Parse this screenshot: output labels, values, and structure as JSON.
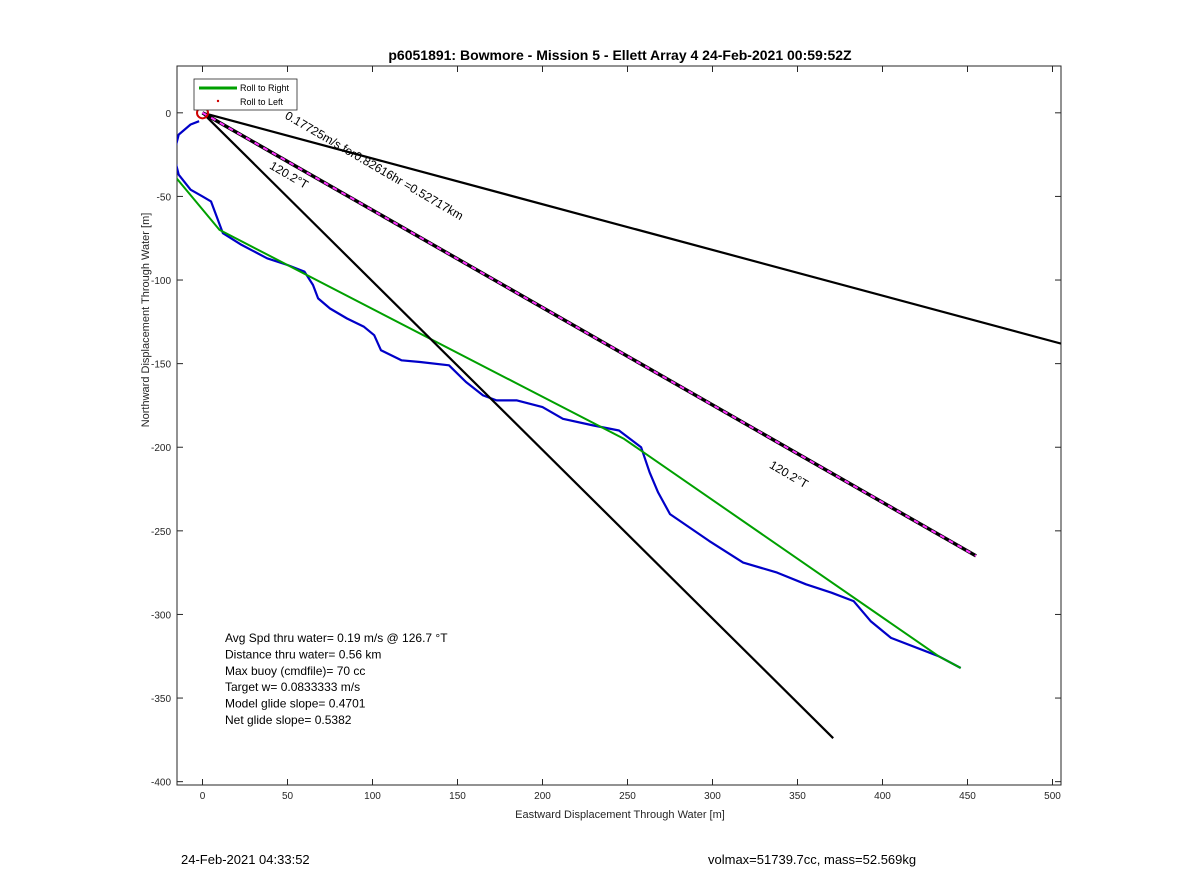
{
  "chart_data": {
    "type": "line",
    "title": "p6051891: Bowmore - Mission 5 - Ellett Array 4 24-Feb-2021 00:59:52Z",
    "xlabel": "Eastward Displacement Through Water [m]",
    "ylabel": "Northward Displacement Through Water [m]",
    "xlim": [
      -15,
      505
    ],
    "ylim": [
      -402,
      28
    ],
    "xticks": [
      0,
      50,
      100,
      150,
      200,
      250,
      300,
      350,
      400,
      450,
      500
    ],
    "yticks": [
      0,
      -50,
      -100,
      -150,
      -200,
      -250,
      -300,
      -350,
      -400
    ],
    "grid": false,
    "legend": {
      "placement": "top-left",
      "entries": [
        {
          "label": "Roll to Right",
          "color": "#00a000",
          "style": "line"
        },
        {
          "label": "Roll to Left",
          "color": "#d00000",
          "style": "dot"
        }
      ]
    },
    "series": [
      {
        "color": "#0000c8",
        "x": [
          -2,
          -7,
          -14,
          -17,
          -14,
          -7,
          0,
          5,
          12,
          23,
          38,
          50,
          60,
          65,
          68,
          75,
          85,
          95,
          101,
          105,
          117,
          128,
          145,
          155,
          165,
          173,
          185,
          200,
          212,
          230,
          245,
          258,
          263,
          268,
          275,
          298,
          318,
          338,
          355,
          370,
          383,
          393,
          405,
          433,
          446
        ],
        "y": [
          -5,
          -7,
          -13,
          -25,
          -37,
          -46,
          -50,
          -53,
          -72,
          -79,
          -87,
          -91,
          -95,
          -103,
          -111,
          -117,
          -123,
          -128,
          -133,
          -142,
          -148,
          -149,
          -151,
          -161,
          -169,
          -172,
          -172,
          -176,
          -183,
          -187,
          -190,
          -200,
          -215,
          -227,
          -240,
          -256,
          -269,
          -275,
          -282,
          -287,
          -292,
          -304,
          -314,
          -325,
          -332
        ]
      },
      {
        "color": "#00a000",
        "x": [
          -17,
          10,
          248,
          433,
          446
        ],
        "y": [
          -37,
          -70,
          -195,
          -325,
          -332
        ]
      },
      {
        "color": "#000000",
        "x": [
          0,
          505
        ],
        "y": [
          0,
          -138
        ]
      },
      {
        "color": "#000000",
        "x": [
          0,
          371
        ],
        "y": [
          0,
          -374
        ]
      },
      {
        "color": "#000000",
        "style": "dashed-magenta",
        "x": [
          0,
          455
        ],
        "y": [
          0,
          -265
        ]
      }
    ],
    "origin_marker": {
      "x": 0,
      "y": 0,
      "color": "#d00000"
    },
    "annotations": [
      {
        "text": "0.17725m/s for0.82616hr =0.52717km",
        "x": 48,
        "y": -3,
        "angle_deg": 30.2
      },
      {
        "text": "120.2°T",
        "x": 39,
        "y": -33,
        "angle_deg": 30.2
      },
      {
        "text": "120.2°T",
        "x": 333,
        "y": -212,
        "angle_deg": 30.2
      }
    ],
    "stats": [
      "Avg Spd thru water=  0.19 m/s @ 126.7 °T",
      "Distance thru water=  0.56 km",
      "Max buoy (cmdfile)= 70 cc",
      "Target w= 0.0833333 m/s",
      "Model glide slope= 0.4701",
      "Net glide slope= 0.5382"
    ]
  },
  "footer": {
    "left": "24-Feb-2021 04:33:52",
    "right": "volmax=51739.7cc, mass=52.569kg"
  }
}
